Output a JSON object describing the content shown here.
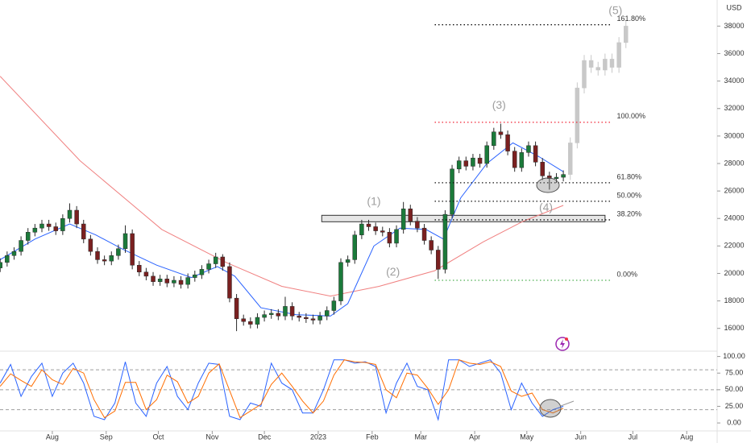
{
  "chart_data": [
    {
      "type": "candlestick",
      "currency": "USD",
      "xlim": [
        -30.1,
        382.5
      ],
      "xticks": [
        {
          "value": 0,
          "label": "Aug"
        },
        {
          "value": 31,
          "label": "Sep"
        },
        {
          "value": 61,
          "label": "Oct"
        },
        {
          "value": 92,
          "label": "Nov"
        },
        {
          "value": 122,
          "label": "Dec"
        },
        {
          "value": 153,
          "label": "2023"
        },
        {
          "value": 184,
          "label": "Feb"
        },
        {
          "value": 212,
          "label": "Mar"
        },
        {
          "value": 243,
          "label": "Apr"
        },
        {
          "value": 273,
          "label": "May"
        },
        {
          "value": 304,
          "label": "Jun"
        },
        {
          "value": 334,
          "label": "Jul"
        },
        {
          "value": 365,
          "label": "Aug"
        }
      ],
      "ylim": [
        14400,
        39900
      ],
      "yticks": [
        16000,
        18000,
        20000,
        22000,
        24000,
        26000,
        28000,
        30000,
        32000,
        34000,
        36000,
        38000
      ],
      "candles": {
        "up_color": "#1b7a3a",
        "down_color": "#7a2020",
        "x": [
          -30,
          -26,
          -22,
          -18,
          -14,
          -10,
          -6,
          -2,
          2,
          6,
          10,
          14,
          18,
          22,
          26,
          30,
          34,
          38,
          42,
          46,
          50,
          54,
          58,
          62,
          66,
          70,
          74,
          78,
          82,
          86,
          90,
          94,
          98,
          102,
          106,
          110,
          114,
          118,
          122,
          126,
          130,
          134,
          138,
          142,
          146,
          150,
          154,
          158,
          162,
          166,
          170,
          174,
          178,
          182,
          186,
          190,
          194,
          198,
          202,
          206,
          210,
          214,
          218,
          222,
          226,
          230,
          234,
          238,
          242,
          246,
          250,
          254,
          258,
          262,
          266,
          270,
          274,
          278,
          282,
          286,
          290,
          294
        ],
        "open": [
          20400,
          20800,
          21300,
          21600,
          22400,
          23000,
          23300,
          23600,
          23400,
          23100,
          24000,
          24600,
          23600,
          22500,
          21600,
          21000,
          20900,
          21300,
          21800,
          22900,
          20600,
          20100,
          19800,
          19400,
          19600,
          19300,
          19500,
          19200,
          19700,
          19900,
          20300,
          20700,
          21200,
          20500,
          18200,
          16700,
          16500,
          16300,
          16800,
          17000,
          17100,
          16900,
          17600,
          16900,
          16800,
          16700,
          16600,
          16900,
          17300,
          18000,
          20800,
          21000,
          22800,
          23600,
          23400,
          23100,
          23000,
          22200,
          23200,
          24700,
          23800,
          23300,
          22400,
          21700,
          20300,
          24300,
          27600,
          28200,
          27800,
          28400,
          28000,
          29300,
          30300,
          30100,
          28900,
          27700,
          28800,
          29300,
          28100,
          27100,
          26900,
          27000
        ],
        "high": [
          21100,
          21600,
          21900,
          22700,
          23300,
          23600,
          23900,
          23900,
          23700,
          24300,
          25100,
          24900,
          23900,
          22800,
          21900,
          21300,
          21600,
          22100,
          23500,
          23200,
          20900,
          20400,
          20100,
          19900,
          19900,
          19800,
          19800,
          20000,
          20200,
          20600,
          21000,
          21500,
          21400,
          20800,
          18500,
          17000,
          16800,
          17100,
          17300,
          17400,
          17400,
          18300,
          17900,
          17200,
          17100,
          17000,
          17200,
          17600,
          18300,
          21100,
          21300,
          23100,
          23900,
          23900,
          23700,
          23400,
          23300,
          23500,
          25200,
          25000,
          24100,
          23600,
          22700,
          22000,
          24600,
          27900,
          28500,
          28500,
          28700,
          28700,
          29600,
          30600,
          30900,
          30400,
          29200,
          29100,
          29600,
          29600,
          28400,
          27400,
          27300,
          27500
        ],
        "low": [
          20100,
          20500,
          21000,
          21300,
          22100,
          22700,
          23000,
          23100,
          22800,
          22800,
          23700,
          23300,
          22200,
          21300,
          20700,
          20600,
          20600,
          21000,
          21500,
          20300,
          19800,
          19500,
          19100,
          19100,
          19000,
          19000,
          18900,
          18900,
          19400,
          19600,
          20000,
          20400,
          20200,
          17900,
          15800,
          16200,
          16000,
          16000,
          16500,
          16700,
          16600,
          16600,
          16600,
          16500,
          16400,
          16300,
          16300,
          16600,
          17000,
          17700,
          20500,
          20700,
          22500,
          23100,
          22800,
          22700,
          21900,
          21900,
          22900,
          23500,
          23000,
          22100,
          21400,
          19600,
          20000,
          24000,
          27300,
          27500,
          27500,
          27700,
          27700,
          29000,
          29800,
          28600,
          27400,
          27400,
          28500,
          27800,
          26800,
          26100,
          26600,
          26700
        ],
        "close": [
          20800,
          21300,
          21600,
          22400,
          23000,
          23300,
          23600,
          23400,
          23100,
          24000,
          24600,
          23600,
          22500,
          21600,
          21000,
          20900,
          21300,
          21800,
          22900,
          20600,
          20100,
          19800,
          19400,
          19600,
          19300,
          19500,
          19200,
          19700,
          19900,
          20300,
          20700,
          21200,
          20500,
          18200,
          16700,
          16500,
          16300,
          16800,
          17000,
          17100,
          16900,
          17600,
          16900,
          16800,
          16700,
          16600,
          16900,
          17300,
          18000,
          20800,
          21000,
          22800,
          23600,
          23400,
          23100,
          23000,
          22200,
          23200,
          24700,
          23800,
          23300,
          22400,
          21700,
          20300,
          24300,
          27600,
          28200,
          27800,
          28400,
          28000,
          29300,
          30300,
          30100,
          28900,
          27700,
          28800,
          29300,
          28100,
          27100,
          26900,
          27000,
          27200
        ]
      },
      "projection": {
        "color": "#c8c8c8",
        "x": [
          298,
          302,
          306,
          310,
          314,
          318,
          322,
          326,
          330
        ],
        "open": [
          27200,
          29500,
          33500,
          35500,
          35000,
          34800,
          35600,
          35000,
          36800
        ],
        "high": [
          29900,
          33900,
          35900,
          35900,
          35400,
          36000,
          36000,
          37200,
          38400
        ],
        "low": [
          26800,
          29100,
          33100,
          34600,
          34400,
          34400,
          34600,
          34600,
          36400
        ],
        "close": [
          29500,
          33500,
          35500,
          35000,
          34800,
          35600,
          35000,
          36800,
          38000
        ]
      },
      "lines": [
        {
          "color": "#f08080",
          "x": [
            -30,
            16,
            63,
            100,
            132,
            160,
            188,
            220,
            248,
            271,
            294
          ],
          "values": [
            34350,
            28200,
            23200,
            20800,
            19060,
            18350,
            19060,
            20200,
            22300,
            23800,
            24950
          ]
        },
        {
          "color": "#2962ff",
          "x": [
            -30,
            -10,
            10,
            25,
            40,
            60,
            80,
            95,
            105,
            120,
            140,
            160,
            170,
            185,
            200,
            215,
            225,
            235,
            250,
            265,
            280,
            294
          ],
          "values": [
            21000,
            22500,
            23600,
            22800,
            21800,
            20600,
            19700,
            20500,
            19800,
            17500,
            17000,
            16900,
            17800,
            22000,
            23300,
            23200,
            22500,
            25500,
            28000,
            29500,
            28500,
            27400
          ]
        }
      ],
      "fib_span": [
        220,
        322
      ],
      "fib": [
        {
          "label": "161.80%",
          "value": 38100,
          "color": "#111111"
        },
        {
          "label": "100.00%",
          "value": 31000,
          "color": "#f23645"
        },
        {
          "label": "61.80%",
          "value": 26600,
          "color": "#111111"
        },
        {
          "label": "50.00%",
          "value": 25250,
          "color": "#111111"
        },
        {
          "label": "38.20%",
          "value": 23900,
          "color": "#111111"
        },
        {
          "label": "0.00%",
          "value": 19500,
          "color": "#4caf50"
        }
      ],
      "zone": {
        "from": 155,
        "to": 318,
        "low": 23760,
        "high": 24230
      },
      "waves": [
        {
          "label": "(1)",
          "x": 185,
          "y": 25200
        },
        {
          "label": "(2)",
          "x": 196,
          "y": 20060
        },
        {
          "label": "(3)",
          "x": 257,
          "y": 32200
        },
        {
          "label": "(4)",
          "x": 284,
          "y": 24750
        },
        {
          "label": "(5)",
          "x": 324,
          "y": 39100
        }
      ]
    },
    {
      "type": "stochastic",
      "ylim": [
        -12,
        108
      ],
      "yticks": [
        {
          "value": 100,
          "label": "100.00"
        },
        {
          "value": 75,
          "label": "75.00"
        },
        {
          "value": 50,
          "label": "50.00"
        },
        {
          "value": 25,
          "label": "25.00"
        },
        {
          "value": 0,
          "label": "0.00"
        }
      ],
      "levels": [
        80,
        50,
        20
      ],
      "x": [
        -30,
        -24,
        -18,
        -12,
        -6,
        0,
        6,
        12,
        18,
        24,
        30,
        36,
        42,
        48,
        54,
        60,
        66,
        72,
        78,
        84,
        90,
        96,
        102,
        108,
        114,
        120,
        126,
        132,
        138,
        144,
        150,
        156,
        162,
        168,
        174,
        180,
        186,
        192,
        198,
        204,
        210,
        216,
        222,
        228,
        234,
        240,
        246,
        252,
        258,
        264,
        270,
        276,
        282,
        288,
        294
      ],
      "series": [
        {
          "color": "#2962ff",
          "values": [
            60,
            88,
            40,
            70,
            90,
            40,
            75,
            90,
            60,
            10,
            5,
            30,
            92,
            30,
            10,
            60,
            85,
            40,
            20,
            60,
            90,
            88,
            10,
            5,
            30,
            25,
            90,
            60,
            50,
            15,
            15,
            50,
            95,
            95,
            90,
            92,
            85,
            15,
            60,
            90,
            55,
            50,
            5,
            95,
            95,
            85,
            90,
            95,
            75,
            20,
            60,
            30,
            10,
            20,
            25
          ]
        },
        {
          "color": "#ff6d00",
          "values": [
            55,
            74,
            64,
            55,
            80,
            65,
            58,
            82,
            75,
            35,
            8,
            18,
            61,
            61,
            20,
            35,
            72,
            62,
            30,
            40,
            75,
            89,
            49,
            8,
            18,
            28,
            58,
            75,
            55,
            33,
            15,
            33,
            72,
            95,
            92,
            91,
            88,
            50,
            38,
            75,
            72,
            52,
            28,
            50,
            95,
            90,
            88,
            92,
            85,
            48,
            40,
            45,
            20,
            15,
            22
          ]
        }
      ]
    }
  ]
}
